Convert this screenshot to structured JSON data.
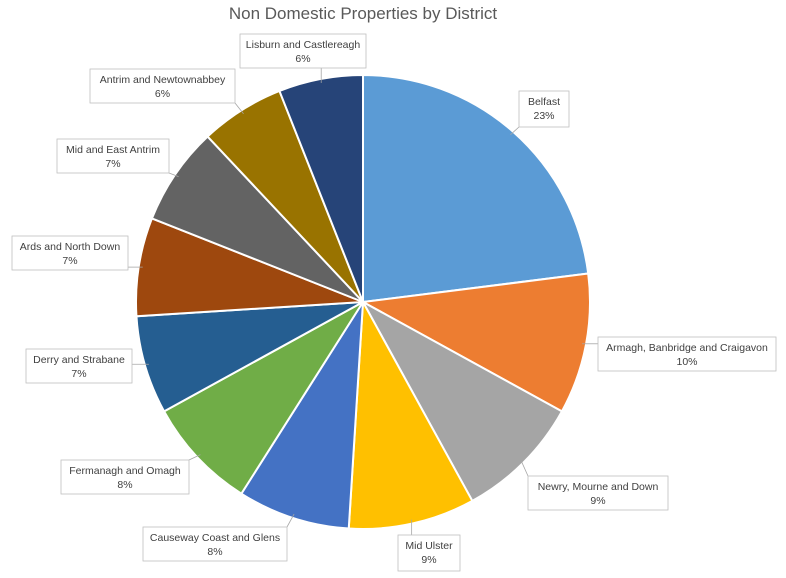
{
  "chart_data": {
    "type": "pie",
    "title": "Non Domestic Properties by District",
    "legend": "none",
    "slices": [
      {
        "label": "Belfast",
        "value": 23,
        "pct_label": "23%",
        "color": "#5B9BD5"
      },
      {
        "label": "Armagh, Banbridge and Craigavon",
        "value": 10,
        "pct_label": "10%",
        "color": "#ED7D31"
      },
      {
        "label": "Newry, Mourne and Down",
        "value": 9,
        "pct_label": "9%",
        "color": "#A5A5A5"
      },
      {
        "label": "Mid Ulster",
        "value": 9,
        "pct_label": "9%",
        "color": "#FFC000"
      },
      {
        "label": "Causeway Coast and Glens",
        "value": 8,
        "pct_label": "8%",
        "color": "#4472C4"
      },
      {
        "label": "Fermanagh and Omagh",
        "value": 8,
        "pct_label": "8%",
        "color": "#70AD47"
      },
      {
        "label": "Derry and Strabane",
        "value": 7,
        "pct_label": "7%",
        "color": "#255E91"
      },
      {
        "label": "Ards and North Down",
        "value": 7,
        "pct_label": "7%",
        "color": "#9E480E"
      },
      {
        "label": "Mid and East Antrim",
        "value": 7,
        "pct_label": "7%",
        "color": "#636363"
      },
      {
        "label": "Antrim and Newtownabbey",
        "value": 6,
        "pct_label": "6%",
        "color": "#997300"
      },
      {
        "label": "Lisburn and Castlereagh",
        "value": 6,
        "pct_label": "6%",
        "color": "#264478"
      }
    ]
  }
}
